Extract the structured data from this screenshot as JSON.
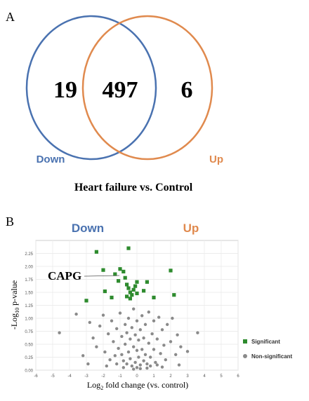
{
  "panel_a": {
    "label": "A",
    "left_only": "19",
    "overlap": "497",
    "right_only": "6",
    "left_set_label": "Down",
    "right_set_label": "Up",
    "caption": "Heart failure vs. Control",
    "colors": {
      "down": "#4a72b0",
      "up": "#e08a4e"
    }
  },
  "panel_b": {
    "label": "B",
    "header_down": "Down",
    "header_up": "Up",
    "annotation": "CAPG",
    "ylabel_parts": [
      "-Log",
      "10",
      " p-value"
    ],
    "xlabel_parts": [
      "Log",
      "2",
      " fold change (vs. control)"
    ],
    "legend": [
      {
        "label": "Significant",
        "color": "#2e8b2e"
      },
      {
        "label": "Non-significant",
        "color": "#8a8a8a"
      }
    ]
  },
  "chart_data": {
    "type": "scatter",
    "xlim": [
      -6,
      6
    ],
    "ylim": [
      0,
      2.5
    ],
    "x_ticks": [
      "-6",
      "-5",
      "-4",
      "-3",
      "-2",
      "-1",
      "0",
      "1",
      "2",
      "3",
      "4",
      "5",
      "6"
    ],
    "y_ticks": [
      "0.00",
      "0.25",
      "0.50",
      "0.75",
      "1.00",
      "1.25",
      "1.50",
      "1.75",
      "2.00",
      "2.25"
    ],
    "grid": true,
    "legend_position": "right",
    "series": [
      {
        "name": "Significant",
        "color": "#2e8b2e",
        "points": [
          [
            -3.0,
            1.34
          ],
          [
            -2.4,
            2.28
          ],
          [
            -2.0,
            1.93
          ],
          [
            -1.9,
            1.52
          ],
          [
            -1.5,
            1.4
          ],
          [
            -1.3,
            1.85
          ],
          [
            -1.1,
            1.72
          ],
          [
            -1.0,
            1.95
          ],
          [
            -0.8,
            1.9
          ],
          [
            -0.7,
            1.78
          ],
          [
            -0.5,
            2.35
          ],
          [
            -0.6,
            1.65
          ],
          [
            -0.5,
            1.58
          ],
          [
            -0.4,
            1.5
          ],
          [
            -0.3,
            1.45
          ],
          [
            -0.2,
            1.55
          ],
          [
            -0.6,
            1.42
          ],
          [
            -0.4,
            1.38
          ],
          [
            -0.1,
            1.62
          ],
          [
            0.0,
            1.48
          ],
          [
            0.0,
            1.7
          ],
          [
            0.6,
            1.7
          ],
          [
            0.4,
            1.53
          ],
          [
            1.0,
            1.4
          ],
          [
            2.0,
            1.92
          ],
          [
            2.2,
            1.45
          ]
        ]
      },
      {
        "name": "Non-significant",
        "color": "#8a8a8a",
        "points": [
          [
            -4.6,
            0.72
          ],
          [
            -3.6,
            1.08
          ],
          [
            -3.2,
            0.28
          ],
          [
            -2.8,
            0.92
          ],
          [
            -2.6,
            0.62
          ],
          [
            -2.4,
            0.45
          ],
          [
            -2.2,
            0.85
          ],
          [
            -2.0,
            1.06
          ],
          [
            -1.9,
            0.35
          ],
          [
            -1.7,
            0.7
          ],
          [
            -1.6,
            0.2
          ],
          [
            -1.5,
            0.95
          ],
          [
            -1.4,
            0.55
          ],
          [
            -1.3,
            0.28
          ],
          [
            -1.2,
            0.8
          ],
          [
            -1.1,
            0.42
          ],
          [
            -1.0,
            1.1
          ],
          [
            -0.9,
            0.65
          ],
          [
            -0.9,
            0.3
          ],
          [
            -0.8,
            0.18
          ],
          [
            -0.7,
            0.88
          ],
          [
            -0.7,
            0.5
          ],
          [
            -0.6,
            0.12
          ],
          [
            -0.6,
            0.72
          ],
          [
            -0.5,
            0.35
          ],
          [
            -0.5,
            1.0
          ],
          [
            -0.4,
            0.6
          ],
          [
            -0.4,
            0.22
          ],
          [
            -0.3,
            0.08
          ],
          [
            -0.3,
            0.82
          ],
          [
            -0.2,
            0.45
          ],
          [
            -0.2,
            1.18
          ],
          [
            -0.1,
            0.15
          ],
          [
            -0.1,
            0.68
          ],
          [
            0.0,
            0.05
          ],
          [
            0.0,
            0.38
          ],
          [
            0.0,
            0.95
          ],
          [
            0.1,
            0.25
          ],
          [
            0.1,
            0.58
          ],
          [
            0.2,
            0.1
          ],
          [
            0.2,
            0.78
          ],
          [
            0.3,
            0.4
          ],
          [
            0.3,
            1.05
          ],
          [
            0.4,
            0.18
          ],
          [
            0.4,
            0.62
          ],
          [
            0.5,
            0.3
          ],
          [
            0.5,
            0.88
          ],
          [
            0.6,
            0.12
          ],
          [
            0.7,
            0.52
          ],
          [
            0.7,
            1.12
          ],
          [
            0.8,
            0.25
          ],
          [
            0.9,
            0.7
          ],
          [
            1.0,
            0.4
          ],
          [
            1.0,
            0.95
          ],
          [
            1.1,
            0.15
          ],
          [
            1.2,
            0.6
          ],
          [
            1.3,
            1.02
          ],
          [
            1.4,
            0.32
          ],
          [
            1.5,
            0.78
          ],
          [
            1.6,
            0.48
          ],
          [
            1.7,
            0.2
          ],
          [
            1.8,
            0.88
          ],
          [
            2.0,
            0.55
          ],
          [
            2.1,
            1.0
          ],
          [
            2.3,
            0.3
          ],
          [
            2.4,
            0.68
          ],
          [
            2.6,
            0.45
          ],
          [
            3.0,
            0.36
          ],
          [
            3.6,
            0.72
          ],
          [
            -2.9,
            0.12
          ],
          [
            -1.8,
            0.08
          ],
          [
            -0.8,
            0.05
          ],
          [
            0.6,
            0.04
          ],
          [
            1.5,
            0.06
          ],
          [
            2.5,
            0.1
          ],
          [
            -0.2,
            0.02
          ],
          [
            0.2,
            0.03
          ],
          [
            -1.2,
            0.12
          ],
          [
            1.2,
            0.1
          ],
          [
            0.8,
            0.08
          ]
        ]
      }
    ]
  }
}
